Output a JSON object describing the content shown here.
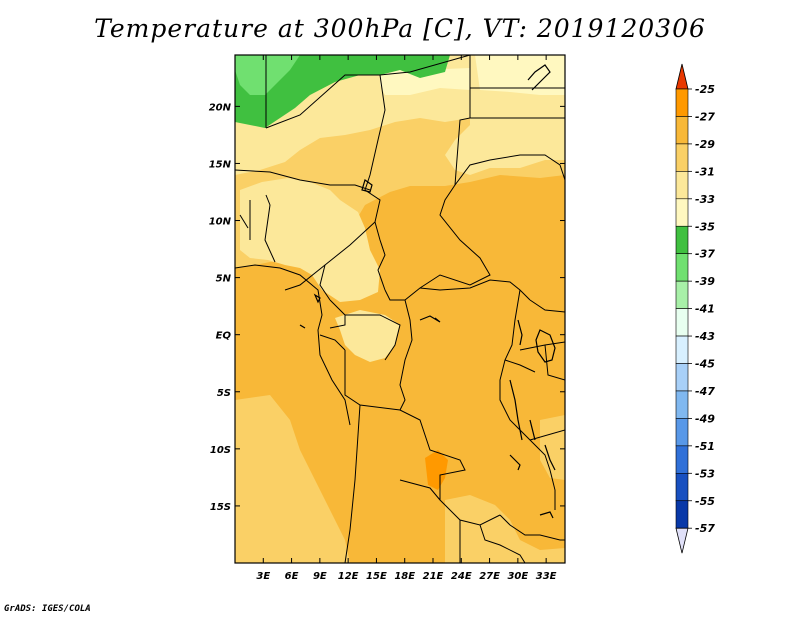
{
  "title": "Temperature at 300hPa [C], VT: 2019120306",
  "credit": "GrADS: IGES/COLA",
  "map": {
    "lon_range": [
      0,
      35
    ],
    "lat_range": [
      -20,
      24.5
    ],
    "lat_ticks": [
      "20N",
      "15N",
      "10N",
      "5N",
      "EQ",
      "5S",
      "10S",
      "15S"
    ],
    "lat_tick_values": [
      20,
      15,
      10,
      5,
      0,
      -5,
      -10,
      -15
    ],
    "lon_ticks": [
      "3E",
      "6E",
      "9E",
      "12E",
      "15E",
      "18E",
      "21E",
      "24E",
      "27E",
      "30E",
      "33E"
    ],
    "lon_tick_values": [
      3,
      6,
      9,
      12,
      15,
      18,
      21,
      24,
      27,
      30,
      33
    ]
  },
  "colorbar": {
    "labels": [
      "-25",
      "-27",
      "-29",
      "-31",
      "-33",
      "-35",
      "-37",
      "-39",
      "-41",
      "-43",
      "-45",
      "-47",
      "-49",
      "-51",
      "-53",
      "-55",
      "-57"
    ],
    "colors": [
      "#ff6600",
      "#ff9900",
      "#f8b838",
      "#fad066",
      "#fce89a",
      "#fff8c0",
      "#40c040",
      "#70e070",
      "#a8f0a8",
      "#e8fff0",
      "#d8f0ff",
      "#a8d0f8",
      "#80b8f0",
      "#5898e8",
      "#3070d8",
      "#1850c0",
      "#0838a8",
      "#000070"
    ],
    "top_arrow_color": "#e83800",
    "bottom_arrow_color": "#e0e0f8"
  }
}
